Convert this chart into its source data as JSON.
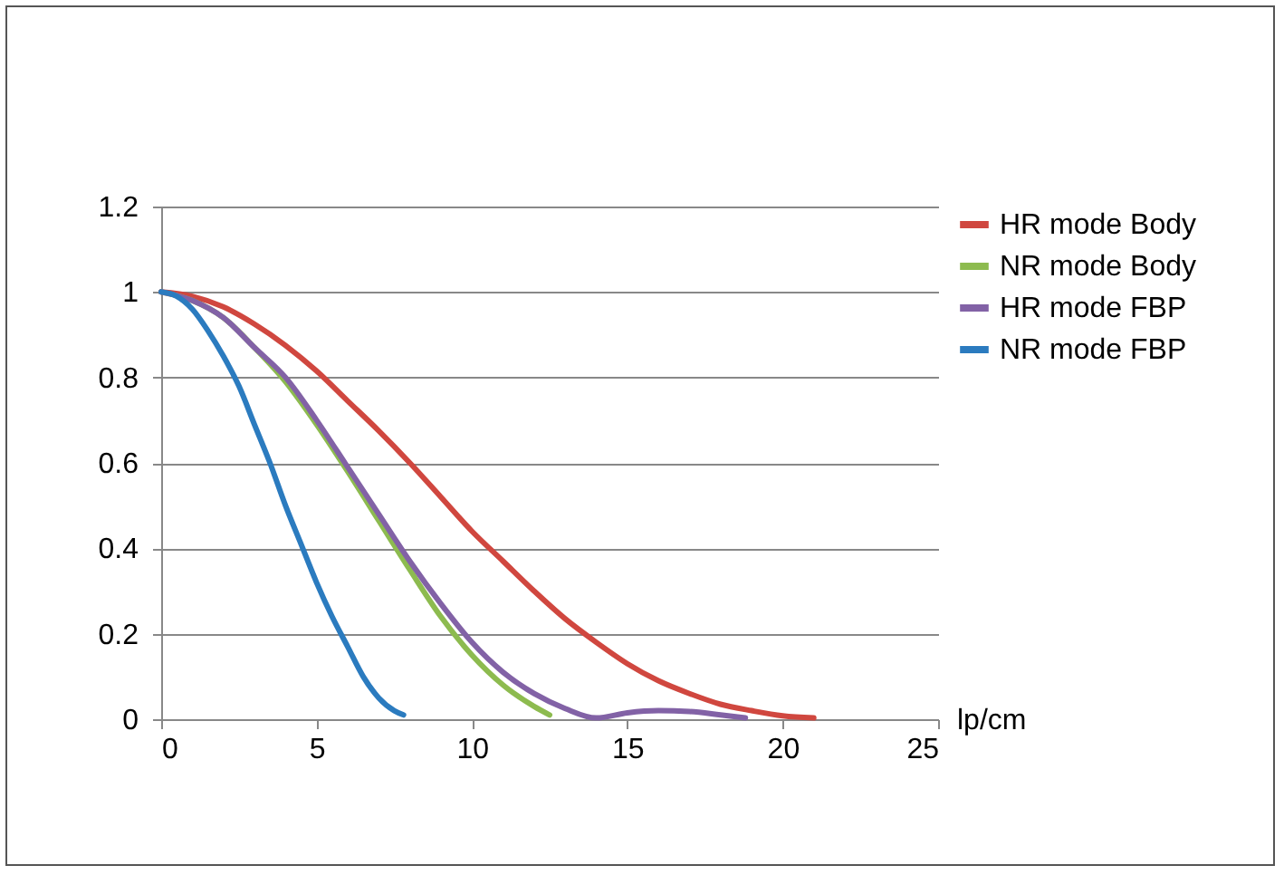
{
  "chart_data": {
    "type": "line",
    "xlabel": "lp/cm",
    "xlim": [
      0,
      25
    ],
    "xticks": [
      0,
      5,
      10,
      15,
      20,
      25
    ],
    "ylim": [
      0,
      1.2
    ],
    "yticks": [
      0,
      0.2,
      0.4,
      0.6,
      0.8,
      1,
      1.2
    ],
    "grid": "y",
    "legend": "right",
    "marker": "none",
    "line_style": "solid",
    "series": [
      {
        "name": "HR mode Body",
        "color": "#d0473f",
        "x": [
          0,
          1,
          2,
          3,
          4,
          5,
          6,
          7,
          8,
          9,
          10,
          11,
          12,
          13,
          14,
          15,
          16,
          17,
          18,
          19,
          20,
          21
        ],
        "values": [
          1,
          0.99,
          0.965,
          0.925,
          0.875,
          0.815,
          0.745,
          0.675,
          0.6,
          0.52,
          0.44,
          0.37,
          0.3,
          0.235,
          0.18,
          0.13,
          0.09,
          0.06,
          0.035,
          0.02,
          0.008,
          0.003
        ]
      },
      {
        "name": "NR mode Body",
        "color": "#8dbb4f",
        "x": [
          0,
          1,
          2,
          3,
          4,
          5,
          6,
          7,
          8,
          9,
          10,
          11,
          12,
          12.5
        ],
        "values": [
          1,
          0.98,
          0.94,
          0.87,
          0.79,
          0.69,
          0.58,
          0.465,
          0.35,
          0.24,
          0.15,
          0.08,
          0.03,
          0.01
        ]
      },
      {
        "name": "HR mode FBP",
        "color": "#8262a6",
        "x": [
          0,
          1,
          2,
          3,
          4,
          5,
          6,
          7,
          8,
          9,
          10,
          11,
          12,
          13,
          14,
          15,
          16,
          17,
          18,
          18.8
        ],
        "values": [
          1,
          0.98,
          0.94,
          0.87,
          0.8,
          0.7,
          0.59,
          0.48,
          0.37,
          0.27,
          0.18,
          0.11,
          0.06,
          0.025,
          0.003,
          0.015,
          0.02,
          0.018,
          0.01,
          0.003
        ]
      },
      {
        "name": "NR mode FBP",
        "color": "#2b7bbf",
        "x": [
          0,
          0.5,
          1,
          1.5,
          2,
          2.5,
          3,
          3.5,
          4,
          4.5,
          5,
          5.5,
          6,
          6.5,
          7,
          7.5,
          7.8
        ],
        "values": [
          1,
          0.99,
          0.96,
          0.91,
          0.85,
          0.78,
          0.69,
          0.6,
          0.5,
          0.41,
          0.32,
          0.24,
          0.17,
          0.1,
          0.05,
          0.02,
          0.01
        ]
      }
    ]
  }
}
